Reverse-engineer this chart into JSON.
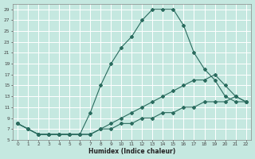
{
  "xlabel": "Humidex (Indice chaleur)",
  "bg_color": "#c5e8e0",
  "grid_color": "#ffffff",
  "line_color": "#2a6b5e",
  "series1_x": [
    0,
    1,
    2,
    3,
    4,
    5,
    6,
    7,
    8,
    9,
    10,
    11,
    12,
    13,
    14,
    15,
    16,
    17,
    18,
    19,
    20,
    21,
    22
  ],
  "series1_y": [
    8,
    7,
    6,
    6,
    6,
    6,
    6,
    10,
    15,
    19,
    22,
    24,
    27,
    29,
    29,
    29,
    26,
    21,
    18,
    16,
    13,
    12,
    12
  ],
  "series2_x": [
    0,
    1,
    2,
    3,
    4,
    5,
    6,
    7,
    8,
    9,
    10,
    11,
    12,
    13,
    14,
    15,
    16,
    17,
    18,
    19,
    20,
    21,
    22
  ],
  "series2_y": [
    8,
    7,
    6,
    6,
    6,
    6,
    6,
    6,
    7,
    8,
    9,
    10,
    11,
    12,
    13,
    14,
    15,
    16,
    16,
    17,
    15,
    13,
    12
  ],
  "series3_x": [
    0,
    1,
    2,
    3,
    4,
    5,
    6,
    7,
    8,
    9,
    10,
    11,
    12,
    13,
    14,
    15,
    16,
    17,
    18,
    19,
    20,
    21,
    22
  ],
  "series3_y": [
    8,
    7,
    6,
    6,
    6,
    6,
    6,
    6,
    7,
    7,
    8,
    8,
    9,
    9,
    10,
    10,
    11,
    11,
    12,
    12,
    12,
    13,
    12
  ],
  "ylim": [
    5,
    30
  ],
  "xlim_min": -0.5,
  "xlim_max": 22.5,
  "yticks": [
    5,
    7,
    9,
    11,
    13,
    15,
    17,
    19,
    21,
    23,
    25,
    27,
    29
  ],
  "xticks": [
    0,
    1,
    2,
    3,
    4,
    5,
    6,
    7,
    8,
    9,
    10,
    11,
    12,
    13,
    14,
    15,
    16,
    17,
    18,
    19,
    20,
    21,
    22
  ],
  "tick_fontsize": 4.2,
  "xlabel_fontsize": 5.5
}
